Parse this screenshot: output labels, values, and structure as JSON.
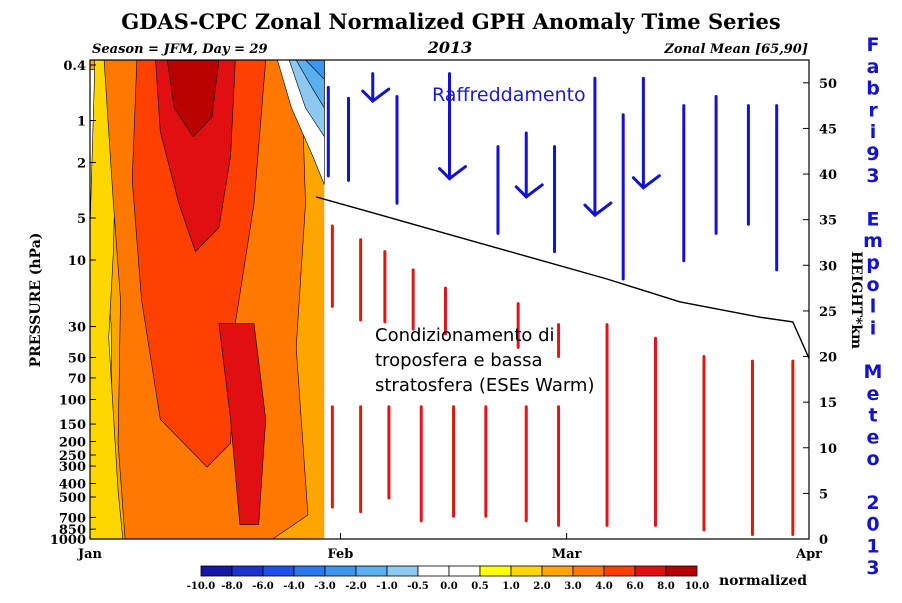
{
  "chart_data": {
    "type": "heatmap",
    "title": "GDAS-CPC Zonal Normalized GPH Anomaly Time Series",
    "subtitle_left": "Season = JFM, Day =  29",
    "subtitle_center": "2013",
    "subtitle_right": "Zonal Mean [65,90]",
    "ylabel": "PRESSURE (hPa)",
    "y2label": "HEIGHT*km",
    "pressure_ticks": [
      "0.4",
      "1",
      "2",
      "5",
      "10",
      "30",
      "50",
      "70",
      "100",
      "150",
      "200",
      "250",
      "300",
      "400",
      "500",
      "700",
      "850",
      "1000"
    ],
    "height_ticks": [
      "50",
      "45",
      "40",
      "35",
      "30",
      "25",
      "20",
      "15",
      "10",
      "5",
      "0"
    ],
    "x_ticks": [
      "Jan",
      "Feb",
      "Mar",
      "Apr"
    ],
    "ylim_height_km": [
      0,
      50
    ],
    "colorbar": {
      "unit": "normalized",
      "boundaries": [
        "-10.0",
        "-8.0",
        "-6.0",
        "-4.0",
        "-3.0",
        "-2.0",
        "-1.0",
        "-0.5",
        "0.0",
        "0.5",
        "1.0",
        "2.0",
        "3.0",
        "4.0",
        "6.0",
        "8.0",
        "10.0"
      ],
      "colors": [
        "#1616a8",
        "#1e32d2",
        "#2050f0",
        "#2a78f0",
        "#3c96f0",
        "#5aaff0",
        "#8cc8f0",
        "#ffffff",
        "#ffffff",
        "#ffff00",
        "#ffd700",
        "#ffa500",
        "#ff7800",
        "#ff4000",
        "#e01010",
        "#b80000"
      ]
    },
    "annotations": {
      "cooling_label": "Raffreddamento",
      "warm_label_lines": [
        "Condizionamento di",
        "troposfera e bassa",
        "stratosfera (ESEs Warm)"
      ]
    },
    "boundary_line": {
      "description_points_day_heightkm": [
        [
          29,
          37.5
        ],
        [
          37,
          35.5
        ],
        [
          45,
          33.5
        ],
        [
          55,
          31
        ],
        [
          65,
          28.5
        ],
        [
          74,
          26
        ],
        [
          84,
          24.3
        ],
        [
          88,
          23.8
        ],
        [
          90,
          19.8
        ]
      ]
    },
    "cooling_arrows": [
      {
        "day": 30.5,
        "top_km": 49.5,
        "bottom_km": 39.8,
        "head": false
      },
      {
        "day": 33,
        "top_km": 48.3,
        "bottom_km": 39.3,
        "head": false
      },
      {
        "day": 36,
        "top_km": 51,
        "bottom_km": 48,
        "head": true
      },
      {
        "day": 39,
        "top_km": 48.5,
        "bottom_km": 36.8,
        "head": false
      },
      {
        "day": 45.5,
        "top_km": 51,
        "bottom_km": 39.5,
        "head": true
      },
      {
        "day": 51.5,
        "top_km": 43,
        "bottom_km": 33.5,
        "head": false
      },
      {
        "day": 55,
        "top_km": 44.5,
        "bottom_km": 37.5,
        "head": true
      },
      {
        "day": 58.5,
        "top_km": 43,
        "bottom_km": 31.5,
        "head": false
      },
      {
        "day": 63.5,
        "top_km": 50.5,
        "bottom_km": 35.5,
        "head": true
      },
      {
        "day": 67,
        "top_km": 46.5,
        "bottom_km": 28.5,
        "head": false
      },
      {
        "day": 69.5,
        "top_km": 50.5,
        "bottom_km": 38.5,
        "head": true
      },
      {
        "day": 74.5,
        "top_km": 47.5,
        "bottom_km": 30.5,
        "head": false
      },
      {
        "day": 78.5,
        "top_km": 48.5,
        "bottom_km": 33.5,
        "head": false
      },
      {
        "day": 82.5,
        "top_km": 47.5,
        "bottom_km": 34.5,
        "head": false
      },
      {
        "day": 86,
        "top_km": 47.5,
        "bottom_km": 29.5,
        "head": false
      }
    ],
    "warm_bars": [
      {
        "day": 31,
        "top_km": 34.3,
        "bottom_km": 25.5
      },
      {
        "day": 34.5,
        "top_km": 32.8,
        "bottom_km": 24
      },
      {
        "day": 37.5,
        "top_km": 31.5,
        "bottom_km": 23.8
      },
      {
        "day": 41,
        "top_km": 29.5,
        "bottom_km": 23
      },
      {
        "day": 45,
        "top_km": 27.5,
        "bottom_km": 22.5
      },
      {
        "day": 54,
        "top_km": 25.8,
        "bottom_km": 21
      },
      {
        "day": 59,
        "top_km": 23.5,
        "bottom_km": 20
      },
      {
        "day": 31,
        "top_km": 14.5,
        "bottom_km": 3.5
      },
      {
        "day": 34.5,
        "top_km": 14.5,
        "bottom_km": 3
      },
      {
        "day": 38,
        "top_km": 14.5,
        "bottom_km": 4.5
      },
      {
        "day": 42,
        "top_km": 14.5,
        "bottom_km": 2
      },
      {
        "day": 46,
        "top_km": 14.5,
        "bottom_km": 2.5
      },
      {
        "day": 50,
        "top_km": 14.5,
        "bottom_km": 2.5
      },
      {
        "day": 55,
        "top_km": 14.5,
        "bottom_km": 2
      },
      {
        "day": 59,
        "top_km": 14.5,
        "bottom_km": 1.5
      },
      {
        "day": 65,
        "top_km": 23.5,
        "bottom_km": 1.5
      },
      {
        "day": 71,
        "top_km": 22,
        "bottom_km": 1.5
      },
      {
        "day": 77,
        "top_km": 20,
        "bottom_km": 1
      },
      {
        "day": 83,
        "top_km": 19.5,
        "bottom_km": 0.5
      },
      {
        "day": 88,
        "top_km": 19.5,
        "bottom_km": 0.5
      }
    ],
    "heatmap_note": "shaded anomaly field shown Jan 1 to Jan 29; warm (red) maximum mid-January through whole column"
  },
  "signature": {
    "lines": [
      "F",
      "a",
      "b",
      "r",
      "i",
      "9",
      "3",
      "",
      "E",
      "m",
      "p",
      "o",
      "l",
      "i",
      "",
      "M",
      "e",
      "t",
      "e",
      "o",
      "",
      "2",
      "0",
      "1",
      "3"
    ]
  }
}
